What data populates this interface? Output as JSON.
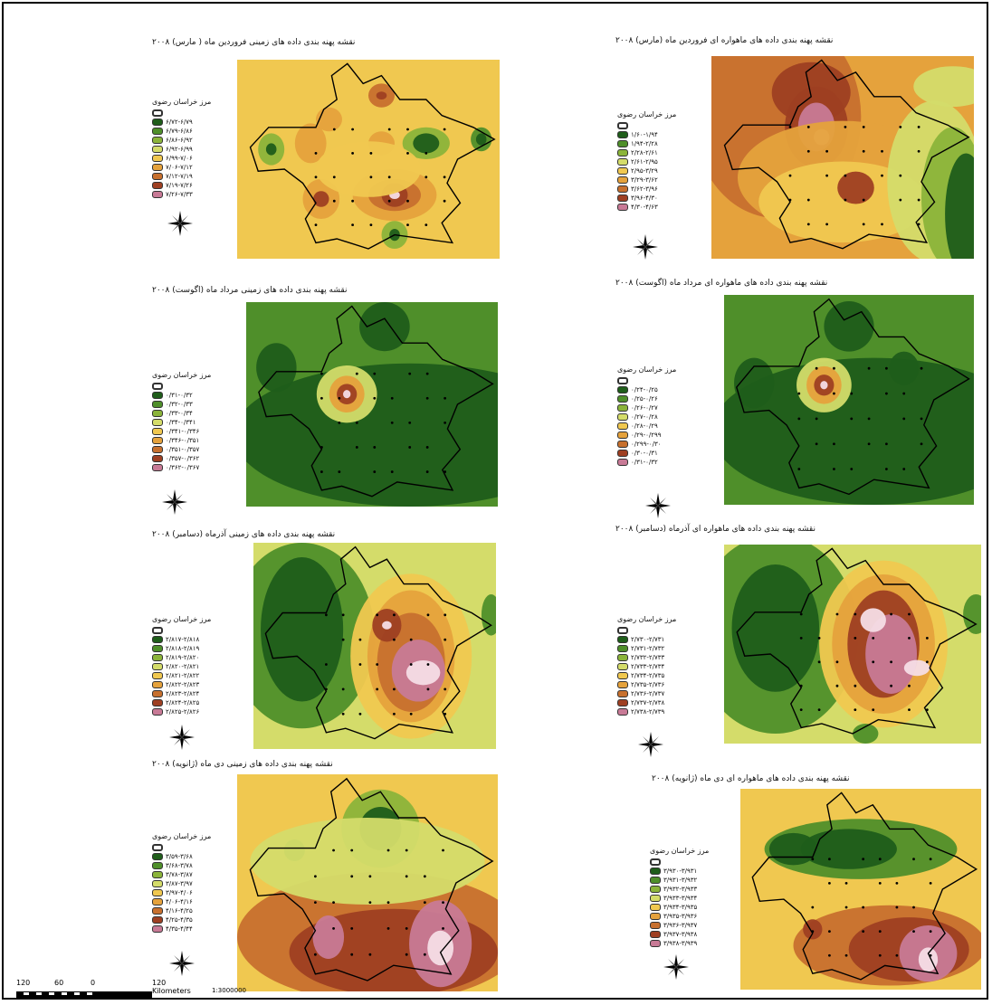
{
  "legend_title": "مرز خراسان رضوی",
  "palette_10": [
    "#1f5d1a",
    "#4f8f2a",
    "#8bb43a",
    "#d4dc6a",
    "#f0c850",
    "#e5a23c",
    "#c7702e",
    "#9e3f22",
    "#c87a96",
    "#f5dde6"
  ],
  "panels": [
    {
      "title": "نقشه پهنه بندی داده های زمینی فروردین ماه ( مارس) ۲۰۰۸",
      "bg": "#f0c850",
      "legend": [
        "۶/۷۲-۶/۷۹",
        "۶/۷۹-۶/۸۶",
        "۶/۸۶-۶/۹۲",
        "۶/۹۲-۶/۹۹",
        "۶/۹۹-۷/۰۶",
        "۷/۰۶-۷/۱۲",
        "۷/۱۲-۷/۱۹",
        "۷/۱۹-۷/۲۶",
        "۷/۲۶-۷/۳۳"
      ]
    },
    {
      "title": "نقشه پهنه بندی داده های ماهواره ای فروردین ماه (مارس) ۲۰۰۸",
      "bg": "#e5a23c",
      "legend": [
        "۱/۶۰-۱/۹۴",
        "۱/۹۴-۲/۲۸",
        "۲/۲۸-۲/۶۱",
        "۲/۶۱-۲/۹۵",
        "۲/۹۵-۳/۲۹",
        "۳/۲۹-۳/۶۲",
        "۳/۶۲-۳/۹۶",
        "۳/۹۶-۴/۳۰",
        "۴/۳۰-۴/۶۳"
      ]
    },
    {
      "title": "نقشه پهنه بندی داده های زمینی مرداد ماه (اگوست) ۲۰۰۸",
      "bg": "#4f8f2a",
      "legend": [
        "۰/۳۱-۰/۳۲",
        "۰/۳۲-۰/۳۳",
        "۰/۳۳-۰/۳۴",
        "۰/۳۴-۰/۳۴۱",
        "۰/۳۴۱-۰/۳۴۶",
        "۰/۳۴۶-۰/۳۵۱",
        "۰/۳۵۱-۰/۳۵۷",
        "۰/۳۵۷-۰/۳۶۲",
        "۰/۳۶۲-۰/۳۶۷"
      ]
    },
    {
      "title": "نقشه پهنه بندی داده های ماهواره ای مرداد ماه (اگوست) ۲۰۰۸",
      "bg": "#4f8f2a",
      "legend": [
        "۰/۲۴-۰/۲۵",
        "۰/۲۵-۰/۲۶",
        "۰/۲۶-۰/۲۷",
        "۰/۲۷-۰/۲۸",
        "۰/۲۸-۰/۲۹",
        "۰/۲۹-۰/۲۹۹",
        "۰/۲۹۹-۰/۳۰",
        "۰/۳۰-۰/۳۱",
        "۰/۳۱-۰/۳۲"
      ]
    },
    {
      "title": "نقشه پهنه بندی داده های زمینی آذرماه (دسامبر) ۲۰۰۸",
      "bg": "#d4dc6a",
      "legend": [
        "۲/۸۱۷-۲/۸۱۸",
        "۲/۸۱۸-۲/۸۱۹",
        "۲/۸۱۹-۲/۸۲۰",
        "۲/۸۲۰-۲/۸۲۱",
        "۲/۸۲۱-۲/۸۲۲",
        "۲/۸۲۲-۲/۸۲۳",
        "۲/۸۲۳-۲/۸۲۴",
        "۲/۸۲۴-۲/۸۲۵",
        "۲/۸۲۵-۲/۸۲۶"
      ]
    },
    {
      "title": "نقشه پهنه بندی داده های ماهواره ای آذرماه (دسامبر) ۲۰۰۸",
      "bg": "#d4dc6a",
      "legend": [
        "۲/۷۳۰-۲/۷۳۱",
        "۲/۷۳۱-۲/۷۳۲",
        "۲/۷۳۲-۲/۷۳۳",
        "۲/۷۳۳-۲/۷۳۴",
        "۲/۷۳۴-۲/۷۳۵",
        "۲/۷۳۵-۲/۷۳۶",
        "۲/۷۳۶-۲/۷۳۷",
        "۲/۷۳۷-۲/۷۳۸",
        "۲/۷۳۸-۲/۷۳۹"
      ]
    },
    {
      "title": "نقشه پهنه بندی داده های زمینی دی ماه (ژانویه) ۲۰۰۸",
      "bg": "#f0c850",
      "legend": [
        "۳/۵۹-۳/۶۸",
        "۳/۶۸-۳/۷۸",
        "۳/۷۸-۳/۸۷",
        "۳/۸۷-۳/۹۷",
        "۳/۹۷-۴/۰۶",
        "۴/۰۶-۴/۱۶",
        "۴/۱۶-۴/۲۵",
        "۴/۲۵-۴/۳۵",
        "۴/۳۵-۴/۴۴"
      ]
    },
    {
      "title": "نقشه پهنه بندی داده های ماهواره ای دی ماه (ژانویه) ۲۰۰۸",
      "bg": "#f0c850",
      "legend": [
        "۳/۹۳۰-۳/۹۳۱",
        "۳/۹۳۱-۳/۹۳۲",
        "۳/۹۳۲-۳/۹۳۳",
        "۳/۹۳۳-۳/۹۳۴",
        "۳/۹۳۴-۳/۹۳۵",
        "۳/۹۳۵-۳/۹۳۶",
        "۳/۹۳۶-۳/۹۳۷",
        "۳/۹۳۷-۳/۹۳۸",
        "۳/۹۳۸-۳/۹۳۹"
      ]
    }
  ],
  "scale": {
    "ticks": [
      "120",
      "60",
      "0",
      "120 Kilometers"
    ],
    "ratio": "1:3000000"
  }
}
